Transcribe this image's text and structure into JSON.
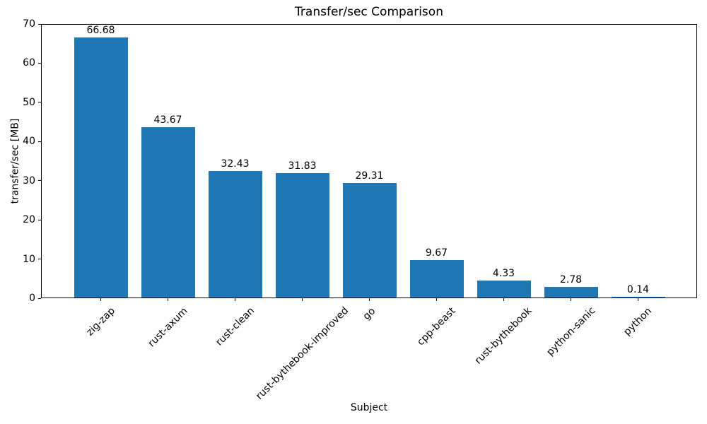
{
  "figure": {
    "background_color": "#ffffff",
    "text_color": "#000000"
  },
  "chart_data": {
    "type": "bar",
    "title": "Transfer/sec Comparison",
    "xlabel": "Subject",
    "ylabel": "transfer/sec [MB]",
    "categories": [
      "zig-zap",
      "rust-axum",
      "rust-clean",
      "rust-bythebook-improved",
      "go",
      "cpp-beast",
      "rust-bythebook",
      "python-sanic",
      "python"
    ],
    "values": [
      66.68,
      43.67,
      32.43,
      31.83,
      29.31,
      9.67,
      4.33,
      2.78,
      0.14
    ],
    "value_labels": [
      "66.68",
      "43.67",
      "32.43",
      "31.83",
      "29.31",
      "9.67",
      "4.33",
      "2.78",
      "0.14"
    ],
    "bar_color": "#1f77b4",
    "ylim": [
      0,
      70
    ],
    "yticks": [
      0,
      10,
      20,
      30,
      40,
      50,
      60,
      70
    ],
    "xtick_rotation_deg": 45,
    "grid": false,
    "legend": "none"
  }
}
